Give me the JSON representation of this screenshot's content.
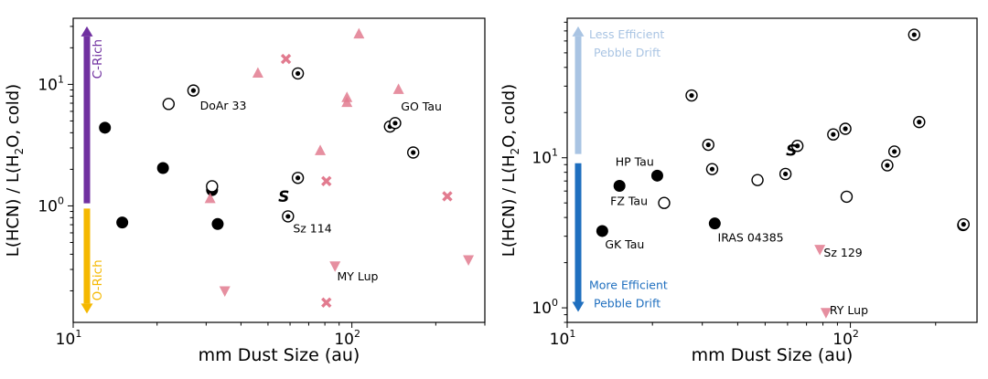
{
  "chart_data": [
    {
      "type": "scatter",
      "xlabel": "mm Dust Size (au)",
      "ylabel": "L(HCN) / L(H2O, cold)",
      "xscale": "log",
      "yscale": "log",
      "xlim": [
        10,
        300
      ],
      "ylim": [
        0.11,
        35
      ],
      "xticks": [
        {
          "value": 10,
          "base": "10",
          "exp": "1"
        },
        {
          "value": 100,
          "base": "10",
          "exp": "2"
        }
      ],
      "yticks": [
        {
          "value": 1,
          "base": "10",
          "exp": "0"
        },
        {
          "value": 10,
          "base": "10",
          "exp": "1"
        }
      ],
      "arrows": [
        {
          "label": "C-Rich",
          "y_from": 1.05,
          "y_to": 30,
          "color": "#7030a0",
          "direction": "up"
        },
        {
          "label": "O-Rich",
          "y_from": 0.95,
          "y_to": 0.13,
          "color": "#f5b800",
          "direction": "down"
        }
      ],
      "series": [
        {
          "marker": "filled-circle",
          "points": [
            [
              13,
              4.4
            ],
            [
              15,
              0.73
            ],
            [
              21,
              2.05
            ],
            [
              31.5,
              1.35
            ],
            [
              33,
              0.71
            ]
          ]
        },
        {
          "marker": "open-circle",
          "points": [
            [
              22,
              6.9
            ],
            [
              31.5,
              1.45
            ]
          ]
        },
        {
          "marker": "dot-circle",
          "points": [
            [
              27,
              8.9
            ],
            [
              64,
              12.3
            ],
            [
              64,
              1.7
            ],
            [
              59,
              0.82
            ],
            [
              137,
              4.5
            ],
            [
              143,
              4.8
            ],
            [
              166,
              2.75
            ]
          ]
        },
        {
          "marker": "triangle-up",
          "points": [
            [
              46,
              12.4
            ],
            [
              106,
              26
            ],
            [
              96,
              7.8
            ],
            [
              96,
              7.1
            ],
            [
              147,
              9.1
            ],
            [
              77,
              2.85
            ],
            [
              31,
              1.15
            ]
          ]
        },
        {
          "marker": "x",
          "points": [
            [
              58,
              16.2
            ],
            [
              81,
              1.6
            ],
            [
              220,
              1.2
            ],
            [
              81,
              0.16
            ]
          ]
        },
        {
          "marker": "triangle-down",
          "points": [
            [
              35,
              0.2
            ],
            [
              87,
              0.32
            ],
            [
              262,
              0.36
            ]
          ]
        }
      ],
      "special_marker": {
        "label": "S",
        "x": 57,
        "y": 1.2
      },
      "annotations": [
        {
          "text": "DoAr 33",
          "x": 28.5,
          "y": 6.6
        },
        {
          "text": "GO Tau",
          "x": 150,
          "y": 6.5
        },
        {
          "text": "Sz 114",
          "x": 61.5,
          "y": 0.64
        },
        {
          "text": "MY Lup",
          "x": 88.5,
          "y": 0.26
        }
      ]
    },
    {
      "type": "scatter",
      "xlabel": "mm Dust Size (au)",
      "ylabel": "L(HCN) / L(H2O, cold)",
      "xscale": "log",
      "yscale": "log",
      "xlim": [
        10,
        280
      ],
      "ylim": [
        0.8,
        85
      ],
      "xticks": [
        {
          "value": 10,
          "base": "10",
          "exp": "1"
        },
        {
          "value": 100,
          "base": "10",
          "exp": "2"
        }
      ],
      "yticks": [
        {
          "value": 1,
          "base": "10",
          "exp": "0"
        },
        {
          "value": 10,
          "base": "10",
          "exp": "1"
        }
      ],
      "arrows": [
        {
          "label": "Less Efficient|Pebble Drift",
          "y_from": 10.6,
          "y_to": 75,
          "color": "#a9c4e3",
          "direction": "up"
        },
        {
          "label": "More Efficient|Pebble Drift",
          "y_from": 9.2,
          "y_to": 0.94,
          "color": "#1f6fbf",
          "direction": "down"
        }
      ],
      "series": [
        {
          "marker": "filled-circle",
          "points": [
            [
              15.3,
              6.5
            ],
            [
              20.8,
              7.6
            ],
            [
              13.3,
              3.25
            ],
            [
              33.2,
              3.65
            ],
            [
              250,
              3.55
            ]
          ]
        },
        {
          "marker": "open-circle",
          "points": [
            [
              22,
              5
            ],
            [
              47,
              7.1
            ],
            [
              97,
              5.5
            ]
          ]
        },
        {
          "marker": "dot-circle",
          "points": [
            [
              27.5,
              26
            ],
            [
              31.5,
              12.2
            ],
            [
              32.5,
              8.4
            ],
            [
              59,
              7.8
            ],
            [
              65,
              12
            ],
            [
              87,
              14.3
            ],
            [
              96,
              15.6
            ],
            [
              135,
              8.9
            ],
            [
              143,
              11
            ],
            [
              168,
              66
            ],
            [
              175,
              17.3
            ],
            [
              251,
              3.6
            ]
          ]
        },
        {
          "marker": "triangle-down",
          "points": [
            [
              78,
              2.45
            ],
            [
              82,
              0.93
            ]
          ]
        }
      ],
      "special_marker": {
        "label": "S",
        "x": 62,
        "y": 11.2
      },
      "annotations": [
        {
          "text": "HP Tau",
          "x": 14.8,
          "y": 9.3
        },
        {
          "text": "FZ Tau",
          "x": 14.2,
          "y": 5.1
        },
        {
          "text": "GK Tau",
          "x": 13.6,
          "y": 2.62
        },
        {
          "text": "IRAS 04385",
          "x": 34,
          "y": 2.9
        },
        {
          "text": "Sz 129",
          "x": 80.5,
          "y": 2.3
        },
        {
          "text": "RY Lup",
          "x": 84.5,
          "y": 0.95
        }
      ]
    }
  ]
}
